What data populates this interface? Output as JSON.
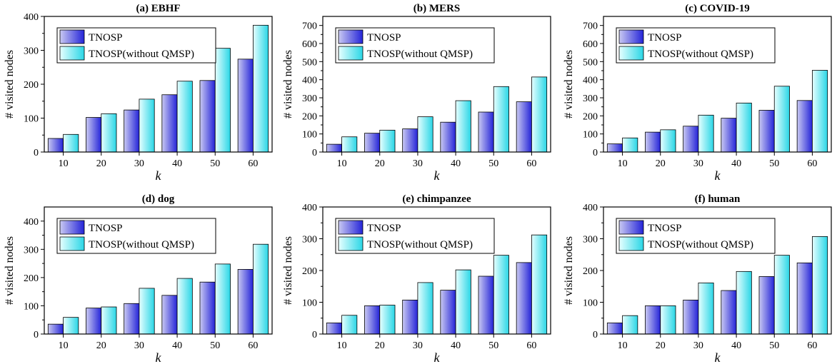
{
  "colors": {
    "series1_light": "#c9c9f2",
    "series1_dark": "#2424d8",
    "series2_light": "#e6ffff",
    "series2_dark": "#2ad6e6",
    "stroke": "#000000"
  },
  "chart_data": [
    {
      "type": "bar",
      "title": "(a) EBHF",
      "xlabel": "k",
      "ylabel": "# visited nodes",
      "categories": [
        "10",
        "20",
        "30",
        "40",
        "50",
        "60"
      ],
      "ylim": [
        0,
        400
      ],
      "yticks": [
        0,
        100,
        200,
        300,
        400
      ],
      "legend": "top-left",
      "series": [
        {
          "name": "TNOSP",
          "values": [
            40,
            102,
            124,
            169,
            211,
            274
          ]
        },
        {
          "name": "TNOSP(without QMSP)",
          "values": [
            52,
            113,
            156,
            209,
            306,
            374
          ]
        }
      ]
    },
    {
      "type": "bar",
      "title": "(b) MERS",
      "xlabel": "k",
      "ylabel": "# visited nodes",
      "categories": [
        "10",
        "20",
        "30",
        "40",
        "50",
        "60"
      ],
      "ylim": [
        0,
        750
      ],
      "yticks": [
        0,
        100,
        200,
        300,
        400,
        500,
        600,
        700
      ],
      "legend": "top-left",
      "series": [
        {
          "name": "TNOSP",
          "values": [
            43,
            104,
            128,
            165,
            221,
            278
          ]
        },
        {
          "name": "TNOSP(without QMSP)",
          "values": [
            84,
            121,
            195,
            284,
            362,
            415
          ]
        }
      ]
    },
    {
      "type": "bar",
      "title": "(c) COVID-19",
      "xlabel": "k",
      "ylabel": "# visited nodes",
      "categories": [
        "10",
        "20",
        "30",
        "40",
        "50",
        "60"
      ],
      "ylim": [
        0,
        750
      ],
      "yticks": [
        0,
        100,
        200,
        300,
        400,
        500,
        600,
        700
      ],
      "legend": "top-left",
      "series": [
        {
          "name": "TNOSP",
          "values": [
            45,
            110,
            143,
            187,
            231,
            285
          ]
        },
        {
          "name": "TNOSP(without QMSP)",
          "values": [
            78,
            123,
            204,
            271,
            364,
            452
          ]
        }
      ]
    },
    {
      "type": "bar",
      "title": "(d) dog",
      "xlabel": "k",
      "ylabel": "# visited nodes",
      "categories": [
        "10",
        "20",
        "30",
        "40",
        "50",
        "60"
      ],
      "ylim": [
        0,
        450
      ],
      "yticks": [
        0,
        100,
        200,
        300,
        400
      ],
      "legend": "top-left",
      "series": [
        {
          "name": "TNOSP",
          "values": [
            35,
            92,
            108,
            137,
            184,
            229
          ]
        },
        {
          "name": "TNOSP(without QMSP)",
          "values": [
            59,
            96,
            162,
            197,
            248,
            318
          ]
        }
      ]
    },
    {
      "type": "bar",
      "title": "(e) chimpanzee",
      "xlabel": "k",
      "ylabel": "# visited nodes",
      "categories": [
        "10",
        "20",
        "30",
        "40",
        "50",
        "60"
      ],
      "ylim": [
        0,
        400
      ],
      "yticks": [
        0,
        100,
        200,
        300,
        400
      ],
      "legend": "top-left",
      "series": [
        {
          "name": "TNOSP",
          "values": [
            35,
            89,
            107,
            138,
            182,
            225
          ]
        },
        {
          "name": "TNOSP(without QMSP)",
          "values": [
            59,
            91,
            162,
            202,
            248,
            312
          ]
        }
      ]
    },
    {
      "type": "bar",
      "title": "(f) human",
      "xlabel": "k",
      "ylabel": "# visited nodes",
      "categories": [
        "10",
        "20",
        "30",
        "40",
        "50",
        "60"
      ],
      "ylim": [
        0,
        400
      ],
      "yticks": [
        0,
        100,
        200,
        300,
        400
      ],
      "legend": "top-left",
      "series": [
        {
          "name": "TNOSP",
          "values": [
            35,
            89,
            107,
            137,
            181,
            224
          ]
        },
        {
          "name": "TNOSP(without QMSP)",
          "values": [
            58,
            89,
            161,
            197,
            248,
            307
          ]
        }
      ]
    }
  ]
}
